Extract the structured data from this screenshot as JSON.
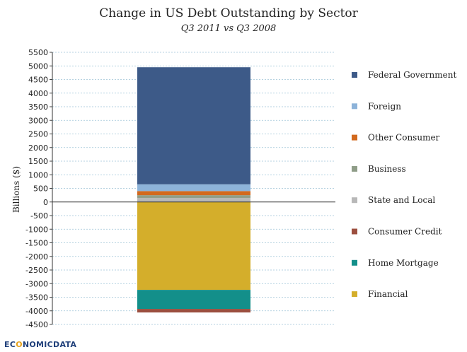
{
  "chart_data": {
    "type": "bar",
    "stacked": true,
    "title": "Change in US Debt Outstanding by Sector",
    "subtitle": "Q3 2011 vs Q3 2008",
    "ylabel": "Billions ($)",
    "xlabel": "",
    "ylim": [
      -4500,
      5500
    ],
    "yticks": [
      5500,
      5000,
      4500,
      4000,
      3500,
      3000,
      2500,
      2000,
      1500,
      1000,
      500,
      0,
      -500,
      -1000,
      -1500,
      -2000,
      -2500,
      -3000,
      -3500,
      -4000,
      -4500
    ],
    "grid": true,
    "legend_position": "right",
    "series": [
      {
        "name": "Federal Government",
        "value": 4300,
        "color": "#3d5a88"
      },
      {
        "name": "Foreign",
        "value": 250,
        "color": "#8db3d9"
      },
      {
        "name": "Other Consumer",
        "value": 150,
        "color": "#d2691e"
      },
      {
        "name": "Business",
        "value": 100,
        "color": "#8f9d88"
      },
      {
        "name": "State and Local",
        "value": 150,
        "color": "#b8b8b8"
      },
      {
        "name": "Consumer Credit",
        "value": -130,
        "color": "#9c4f3f"
      },
      {
        "name": "Home Mortgage",
        "value": -700,
        "color": "#138f8a"
      },
      {
        "name": "Financial",
        "value": -3230,
        "color": "#d4ae2b"
      }
    ]
  },
  "brand": {
    "part1": "EC",
    "part2": "O",
    "part3": "NOMIC",
    "part4": "DATA"
  }
}
